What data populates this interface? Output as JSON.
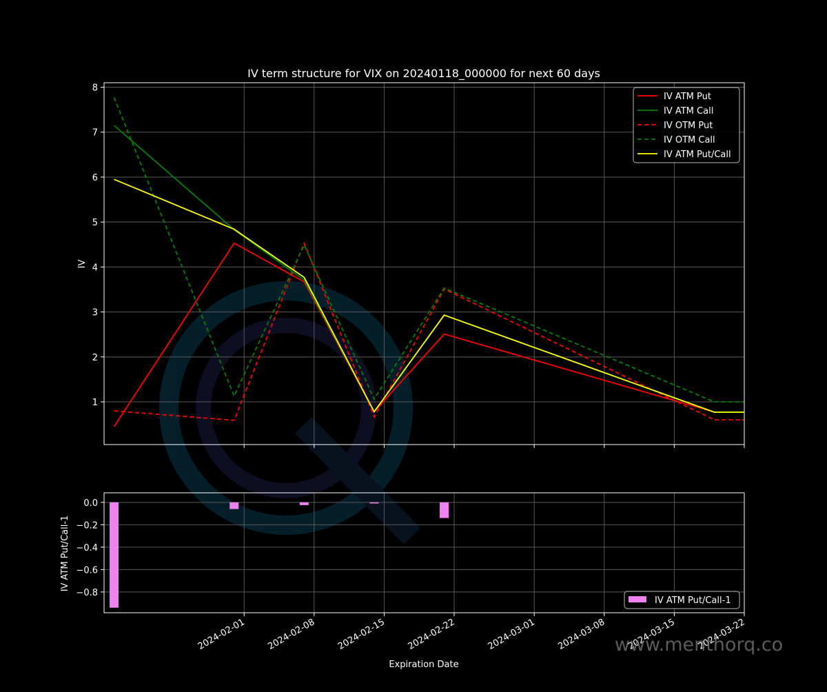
{
  "watermark": {
    "text": "www.menthorq.co"
  },
  "colors": {
    "background": "#000000",
    "axes": "#ffffff",
    "grid": "#5a5a5a",
    "atm_put": "#ff0000",
    "atm_call": "#008000",
    "otm_put": "#ff0000",
    "otm_call": "#008000",
    "atm_put_call": "#ffff00",
    "bar": "#ee82ee"
  },
  "chart_data": [
    {
      "type": "line",
      "title": "IV term structure for VIX on 20240118_000000 for next 60 days",
      "xlabel": "",
      "ylabel": "IV",
      "x": [
        "2024-01-19",
        "2024-01-31",
        "2024-02-07",
        "2024-02-14",
        "2024-02-21",
        "2024-03-19",
        "2024-03-22"
      ],
      "xlim": [
        "2024-01-18",
        "2024-03-22"
      ],
      "ylim": [
        0.05,
        8.1
      ],
      "yticks": [
        1,
        2,
        3,
        4,
        5,
        6,
        7,
        8
      ],
      "grid": true,
      "legend_position": "top-right",
      "series": [
        {
          "name": "IV ATM Put",
          "style": "solid",
          "color": "#ff0000",
          "values": [
            0.45,
            4.53,
            3.67,
            0.78,
            2.51,
            0.77,
            0.77
          ]
        },
        {
          "name": "IV ATM Call",
          "style": "solid",
          "color": "#008000",
          "values": [
            7.15,
            4.83,
            3.71,
            0.78,
            2.93,
            0.77,
            0.77
          ]
        },
        {
          "name": "IV OTM Put",
          "style": "dashed",
          "color": "#ff0000",
          "values": [
            0.8,
            0.59,
            4.53,
            0.67,
            3.51,
            0.6,
            0.6
          ]
        },
        {
          "name": "IV OTM Call",
          "style": "dashed",
          "color": "#008000",
          "values": [
            7.77,
            1.13,
            4.49,
            1.06,
            3.53,
            1.0,
            1.0
          ]
        },
        {
          "name": "IV ATM Put/Call",
          "style": "solid",
          "color": "#ffff00",
          "values": [
            5.95,
            4.84,
            3.77,
            0.78,
            2.93,
            0.77,
            0.77
          ]
        }
      ]
    },
    {
      "type": "bar",
      "xlabel": "Expiration Date",
      "ylabel": "IV ATM Put/Call-1",
      "x": [
        "2024-01-19",
        "2024-01-31",
        "2024-02-07",
        "2024-02-14",
        "2024-02-21"
      ],
      "values": [
        -0.94,
        -0.06,
        -0.025,
        -0.01,
        -0.14
      ],
      "ylim": [
        -0.985,
        0.085
      ],
      "yticks": [
        0.0,
        -0.2,
        -0.4,
        -0.6,
        -0.8
      ],
      "ytick_labels": [
        "0.0",
        "−0.2",
        "−0.4",
        "−0.6",
        "−0.8"
      ],
      "xticks": [
        "2024-02-01",
        "2024-02-08",
        "2024-02-15",
        "2024-02-22",
        "2024-03-01",
        "2024-03-08",
        "2024-03-15",
        "2024-03-22"
      ],
      "grid": true,
      "legend_position": "bottom-right",
      "series": [
        {
          "name": "IV ATM Put/Call-1",
          "color": "#ee82ee"
        }
      ]
    }
  ]
}
